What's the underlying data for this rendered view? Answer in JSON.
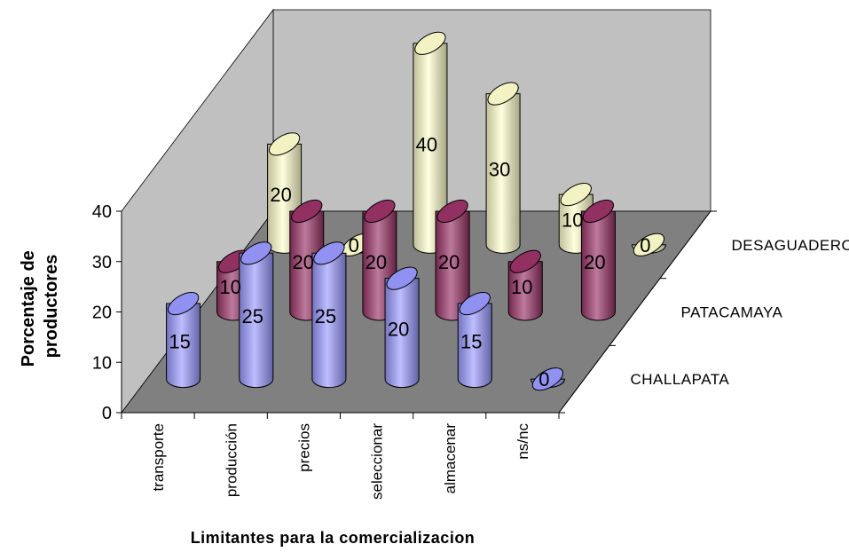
{
  "chart_data": {
    "type": "bar",
    "variant": "3d-cylinder",
    "categories": [
      "transporte",
      "producción",
      "precios",
      "seleccionar",
      "almacenar",
      "ns/nc"
    ],
    "series": [
      {
        "name": "CHALLAPATA",
        "values": [
          15,
          25,
          25,
          20,
          15,
          0
        ],
        "color": "#9999FF"
      },
      {
        "name": "PATACAMAYA",
        "values": [
          10,
          20,
          20,
          20,
          10,
          20
        ],
        "color": "#993366"
      },
      {
        "name": "DESAGUADERO",
        "values": [
          20,
          0,
          40,
          30,
          10,
          0
        ],
        "color": "#FFFFCC"
      }
    ],
    "xlabel": "Limitantes para la comercializacion",
    "ylabel": "Porcentaje de productores",
    "ylabel_lines": [
      "Porcentaje de",
      "productores"
    ],
    "ylim": [
      0,
      40
    ],
    "yticks": [
      0,
      10,
      20,
      30,
      40
    ],
    "grid": false,
    "walls": {
      "back": "#C0C0C0",
      "side": "#C0C0C0",
      "floor": "#808080"
    }
  }
}
